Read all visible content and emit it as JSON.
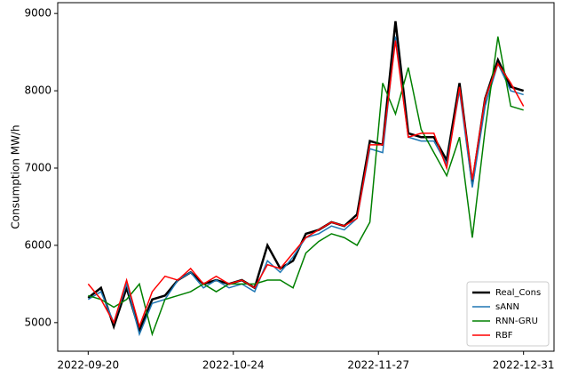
{
  "chart_data": {
    "type": "line",
    "y_label": "Consumption MW/h",
    "x": [
      "2022-09-20",
      "2022-09-23",
      "2022-09-26",
      "2022-09-29",
      "2022-10-02",
      "2022-10-05",
      "2022-10-08",
      "2022-10-11",
      "2022-10-14",
      "2022-10-17",
      "2022-10-20",
      "2022-10-23",
      "2022-10-26",
      "2022-10-29",
      "2022-11-01",
      "2022-11-04",
      "2022-11-07",
      "2022-11-10",
      "2022-11-13",
      "2022-11-16",
      "2022-11-19",
      "2022-11-22",
      "2022-11-25",
      "2022-11-28",
      "2022-12-01",
      "2022-12-04",
      "2022-12-07",
      "2022-12-10",
      "2022-12-13",
      "2022-12-16",
      "2022-12-19",
      "2022-12-22",
      "2022-12-25",
      "2022-12-28",
      "2022-12-31"
    ],
    "series": [
      {
        "name": "Real_Cons",
        "color": "#000000",
        "width": 2.5,
        "values": [
          5320,
          5450,
          4950,
          5450,
          4900,
          5300,
          5350,
          5550,
          5650,
          5500,
          5550,
          5500,
          5550,
          5450,
          6000,
          5700,
          5800,
          6150,
          6200,
          6300,
          6250,
          6400,
          7350,
          7300,
          8900,
          7450,
          7400,
          7400,
          7100,
          8100,
          6800,
          7900,
          8400,
          8050,
          8000
        ]
      },
      {
        "name": "sANN",
        "color": "#1f77b4",
        "width": 1.5,
        "values": [
          5300,
          5400,
          5000,
          5500,
          4850,
          5250,
          5300,
          5550,
          5650,
          5450,
          5550,
          5450,
          5500,
          5400,
          5800,
          5650,
          5850,
          6100,
          6150,
          6250,
          6200,
          6350,
          7250,
          7200,
          8700,
          7400,
          7350,
          7350,
          7050,
          8000,
          6750,
          7800,
          8350,
          8000,
          7950
        ]
      },
      {
        "name": "RNN-GRU",
        "color": "#008000",
        "width": 1.5,
        "values": [
          5350,
          5300,
          5200,
          5300,
          5500,
          4850,
          5300,
          5350,
          5400,
          5500,
          5400,
          5500,
          5500,
          5500,
          5550,
          5550,
          5450,
          5900,
          6050,
          6150,
          6100,
          6000,
          6300,
          8100,
          7700,
          8300,
          7500,
          7200,
          6900,
          7400,
          6100,
          7500,
          8700,
          7800,
          7750
        ]
      },
      {
        "name": "RBF",
        "color": "#ff0000",
        "width": 1.5,
        "values": [
          5500,
          5300,
          5000,
          5550,
          4950,
          5400,
          5600,
          5550,
          5700,
          5500,
          5600,
          5500,
          5550,
          5450,
          5750,
          5700,
          5900,
          6100,
          6200,
          6300,
          6250,
          6350,
          7300,
          7300,
          8650,
          7400,
          7450,
          7450,
          7000,
          8050,
          6850,
          7900,
          8350,
          8100,
          7800
        ]
      }
    ],
    "xticks": [
      "2022-09-20",
      "2022-10-24",
      "2022-11-27",
      "2022-12-31"
    ],
    "ylim": [
      4630,
      9140
    ],
    "yticks": [
      5000,
      6000,
      7000,
      8000,
      9000
    ],
    "legend_position": "lower right"
  }
}
